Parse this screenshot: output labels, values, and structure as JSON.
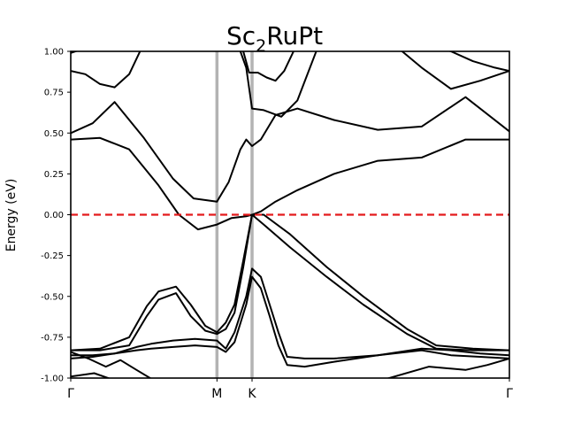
{
  "chart_data": {
    "type": "line",
    "title_main": "Sc",
    "title_sub": "2",
    "title_rest": "RuPt",
    "ylabel": "Energy (eV)",
    "ylim": [
      -1.0,
      1.0
    ],
    "yticks": [
      "-1.00",
      "-0.75",
      "-0.50",
      "-0.25",
      "0.00",
      "0.25",
      "0.50",
      "0.75",
      "1.00"
    ],
    "ytick_values": [
      -1.0,
      -0.75,
      -0.5,
      -0.25,
      0.0,
      0.25,
      0.5,
      0.75,
      1.0
    ],
    "kpath_labels": [
      "Γ",
      "M",
      "K",
      "Γ"
    ],
    "kpath_positions": [
      0.0,
      1.0,
      1.24,
      3.0
    ],
    "xlim": [
      0.0,
      3.0
    ],
    "fermi_level": 0.0,
    "colors": {
      "bands": "#000000",
      "fermi": "#e41a1c",
      "kline": "#b3b3b3"
    },
    "series": [
      {
        "name": "band-1",
        "x": [
          0.0,
          0.16,
          0.32,
          0.48,
          0.66,
          0.84,
          1.0,
          1.12,
          1.24,
          1.5,
          1.8,
          2.1,
          2.4,
          2.7,
          3.0
        ],
        "y": [
          -0.99,
          -0.97,
          -1.02,
          -1.05,
          -1.05,
          -1.05,
          -1.05,
          -1.05,
          -1.05,
          -1.05,
          -1.05,
          -1.05,
          -1.05,
          -1.05,
          -1.05
        ]
      },
      {
        "name": "band-2",
        "x": [
          0.0,
          0.12,
          0.24,
          0.34,
          0.45,
          0.58,
          0.72,
          0.86,
          1.0,
          1.12,
          1.24,
          1.5,
          1.8,
          2.1,
          2.45,
          2.7,
          2.85,
          3.0
        ],
        "y": [
          -0.84,
          -0.88,
          -0.93,
          -0.89,
          -0.95,
          -1.02,
          -1.05,
          -1.05,
          -1.05,
          -1.05,
          -1.05,
          -1.05,
          -1.05,
          -1.02,
          -0.93,
          -0.95,
          -0.92,
          -0.88
        ]
      },
      {
        "name": "band-3",
        "x": [
          0.0,
          0.15,
          0.3,
          0.45,
          0.55,
          0.7,
          0.85,
          1.0,
          1.06,
          1.12,
          1.2,
          1.24,
          1.3,
          1.36,
          1.42,
          1.48,
          1.6,
          1.8,
          2.1,
          2.4,
          2.6,
          2.8,
          3.0
        ],
        "y": [
          -0.86,
          -0.86,
          -0.85,
          -0.83,
          -0.82,
          -0.81,
          -0.8,
          -0.81,
          -0.84,
          -0.78,
          -0.55,
          -0.38,
          -0.45,
          -0.62,
          -0.8,
          -0.92,
          -0.93,
          -0.9,
          -0.86,
          -0.82,
          -0.83,
          -0.85,
          -0.86
        ]
      },
      {
        "name": "band-4",
        "x": [
          0.0,
          0.15,
          0.3,
          0.45,
          0.55,
          0.7,
          0.85,
          1.0,
          1.06,
          1.12,
          1.2,
          1.24,
          1.3,
          1.36,
          1.42,
          1.48,
          1.6,
          1.8,
          2.1,
          2.4,
          2.6,
          2.8,
          3.0
        ],
        "y": [
          -0.88,
          -0.87,
          -0.85,
          -0.81,
          -0.79,
          -0.77,
          -0.76,
          -0.77,
          -0.82,
          -0.72,
          -0.5,
          -0.33,
          -0.38,
          -0.55,
          -0.72,
          -0.87,
          -0.88,
          -0.88,
          -0.86,
          -0.83,
          -0.86,
          -0.87,
          -0.88
        ]
      },
      {
        "name": "band-5",
        "x": [
          0.0,
          0.2,
          0.4,
          0.52,
          0.6,
          0.72,
          0.82,
          0.92,
          1.0,
          1.06,
          1.12,
          1.18,
          1.24,
          1.32,
          1.5,
          1.75,
          2.0,
          2.3,
          2.5,
          2.75,
          3.0
        ],
        "y": [
          -0.83,
          -0.83,
          -0.8,
          -0.62,
          -0.52,
          -0.48,
          -0.62,
          -0.71,
          -0.73,
          -0.7,
          -0.6,
          -0.32,
          0.0,
          -0.06,
          -0.2,
          -0.38,
          -0.55,
          -0.73,
          -0.82,
          -0.83,
          -0.83
        ]
      },
      {
        "name": "band-6",
        "x": [
          0.0,
          0.2,
          0.4,
          0.52,
          0.6,
          0.72,
          0.82,
          0.92,
          1.0,
          1.06,
          1.12,
          1.18,
          1.24,
          1.32,
          1.5,
          1.75,
          2.0,
          2.3,
          2.5,
          2.75,
          3.0
        ],
        "y": [
          -0.83,
          -0.82,
          -0.75,
          -0.56,
          -0.47,
          -0.44,
          -0.55,
          -0.68,
          -0.72,
          -0.66,
          -0.55,
          -0.28,
          0.0,
          0.0,
          -0.12,
          -0.32,
          -0.5,
          -0.7,
          -0.8,
          -0.82,
          -0.83
        ]
      },
      {
        "name": "band-7",
        "x": [
          0.0,
          0.2,
          0.4,
          0.6,
          0.74,
          0.87,
          1.0,
          1.1,
          1.2,
          1.24,
          1.3,
          1.4,
          1.55,
          1.8,
          2.1,
          2.4,
          2.7,
          3.0
        ],
        "y": [
          0.46,
          0.47,
          0.4,
          0.18,
          0.0,
          -0.09,
          -0.06,
          -0.02,
          -0.01,
          0.0,
          0.02,
          0.08,
          0.15,
          0.25,
          0.33,
          0.35,
          0.46,
          0.46
        ]
      },
      {
        "name": "band-8",
        "x": [
          0.0,
          0.15,
          0.3,
          0.5,
          0.7,
          0.84,
          1.0,
          1.08,
          1.16,
          1.2,
          1.24,
          1.3,
          1.4,
          1.55,
          1.8,
          2.1,
          2.4,
          2.7,
          3.0
        ],
        "y": [
          0.5,
          0.56,
          0.69,
          0.47,
          0.22,
          0.1,
          0.08,
          0.2,
          0.4,
          0.46,
          0.42,
          0.46,
          0.61,
          0.65,
          0.58,
          0.52,
          0.54,
          0.72,
          0.51
        ]
      },
      {
        "name": "band-9",
        "x": [
          0.0,
          0.1,
          0.2,
          0.3,
          0.4,
          0.5,
          1.14,
          1.2,
          1.24,
          1.32,
          1.44,
          1.55,
          1.7,
          2.2,
          2.4,
          2.6,
          2.8,
          3.0
        ],
        "y": [
          0.88,
          0.86,
          0.8,
          0.78,
          0.86,
          1.05,
          1.05,
          0.9,
          0.65,
          0.64,
          0.6,
          0.7,
          1.05,
          1.05,
          0.9,
          0.77,
          0.82,
          0.88
        ]
      },
      {
        "name": "band-10",
        "x": [
          0.0,
          0.1,
          0.2,
          0.3,
          0.45,
          1.12,
          1.18,
          1.22,
          1.28,
          1.34,
          1.4,
          1.46,
          1.55,
          2.2,
          2.4,
          2.6,
          2.75,
          2.9,
          3.0
        ],
        "y": [
          0.99,
          1.02,
          1.05,
          1.05,
          1.05,
          1.05,
          1.0,
          0.87,
          0.87,
          0.84,
          0.82,
          0.88,
          1.05,
          1.05,
          1.05,
          1.0,
          0.94,
          0.9,
          0.88
        ]
      },
      {
        "name": "band-11",
        "x": [
          0.0,
          0.35,
          1.0,
          1.24,
          1.4,
          1.55,
          2.0,
          2.4,
          2.8,
          3.0
        ],
        "y": [
          1.05,
          1.05,
          1.05,
          1.05,
          1.05,
          1.05,
          1.05,
          1.05,
          1.05,
          1.05
        ]
      }
    ]
  }
}
